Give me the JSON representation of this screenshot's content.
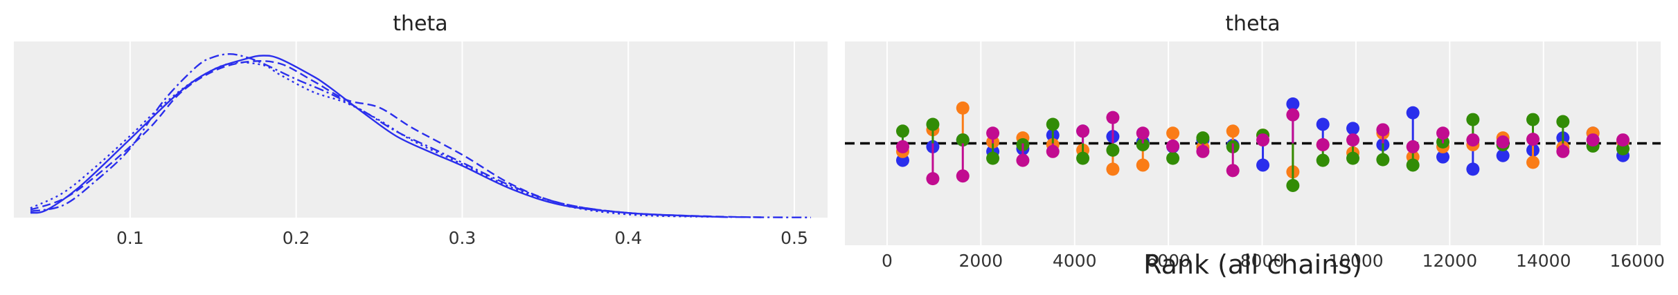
{
  "chart_data": [
    {
      "type": "line",
      "title": "theta",
      "xlabel": "",
      "ylabel": "",
      "xlim": [
        0.03,
        0.52
      ],
      "ylim": [
        0,
        1.12
      ],
      "grid": true,
      "xticks": [
        0.1,
        0.2,
        0.3,
        0.4,
        0.5
      ],
      "xtick_labels": [
        "0.1",
        "0.2",
        "0.3",
        "0.4",
        "0.5"
      ],
      "series": [
        {
          "style": "solid",
          "color": "#2a2eec",
          "x": [
            0.04,
            0.05,
            0.07,
            0.1,
            0.13,
            0.15,
            0.17,
            0.18,
            0.19,
            0.21,
            0.22,
            0.24,
            0.26,
            0.28,
            0.3,
            0.33,
            0.36,
            0.4,
            0.44,
            0.46
          ],
          "y": [
            0.03,
            0.05,
            0.2,
            0.5,
            0.8,
            0.94,
            1.01,
            1.03,
            1.01,
            0.9,
            0.83,
            0.67,
            0.52,
            0.42,
            0.33,
            0.18,
            0.08,
            0.03,
            0.01,
            0.003
          ]
        },
        {
          "style": "dashed",
          "color": "#2a2eec",
          "x": [
            0.04,
            0.06,
            0.08,
            0.11,
            0.13,
            0.15,
            0.17,
            0.19,
            0.21,
            0.23,
            0.25,
            0.27,
            0.3,
            0.33,
            0.36,
            0.4,
            0.45,
            0.48
          ],
          "y": [
            0.05,
            0.12,
            0.27,
            0.55,
            0.79,
            0.93,
            0.99,
            0.98,
            0.87,
            0.75,
            0.7,
            0.57,
            0.4,
            0.21,
            0.09,
            0.03,
            0.008,
            0.002
          ]
        },
        {
          "style": "dotted",
          "color": "#2a2eec",
          "x": [
            0.04,
            0.06,
            0.08,
            0.1,
            0.12,
            0.14,
            0.16,
            0.18,
            0.19,
            0.21,
            0.23,
            0.25,
            0.27,
            0.3,
            0.33,
            0.36,
            0.4,
            0.45
          ],
          "y": [
            0.06,
            0.16,
            0.33,
            0.52,
            0.72,
            0.88,
            0.98,
            0.97,
            0.91,
            0.8,
            0.73,
            0.62,
            0.49,
            0.34,
            0.19,
            0.08,
            0.02,
            0.005
          ]
        },
        {
          "style": "dashdot",
          "color": "#2a2eec",
          "x": [
            0.04,
            0.06,
            0.08,
            0.1,
            0.12,
            0.14,
            0.15,
            0.16,
            0.17,
            0.18,
            0.2,
            0.22,
            0.24,
            0.26,
            0.28,
            0.3,
            0.33,
            0.36,
            0.4,
            0.45,
            0.51
          ],
          "y": [
            0.04,
            0.08,
            0.24,
            0.44,
            0.74,
            0.96,
            1.02,
            1.04,
            1.02,
            0.98,
            0.88,
            0.79,
            0.68,
            0.55,
            0.45,
            0.35,
            0.2,
            0.09,
            0.03,
            0.006,
            0.001
          ]
        }
      ]
    },
    {
      "type": "scatter",
      "title": "theta",
      "xlabel": "Rank (all chains)",
      "ylabel": "",
      "xlim": [
        -900,
        16500
      ],
      "ylim": [
        -1.5,
        1.5
      ],
      "grid": true,
      "reference_line": {
        "y": 0,
        "style": "dashed",
        "color": "#000000"
      },
      "xticks": [
        0,
        2000,
        4000,
        6000,
        8000,
        10000,
        12000,
        14000,
        16000
      ],
      "xtick_labels": [
        "0",
        "2000",
        "4000",
        "6000",
        "8000",
        "10000",
        "12000",
        "14000",
        "16000"
      ],
      "x": [
        333,
        975,
        1615,
        2255,
        2895,
        3535,
        4175,
        4815,
        5455,
        6095,
        6735,
        7375,
        8015,
        8655,
        9295,
        9935,
        10575,
        11215,
        11855,
        12495,
        13135,
        13775,
        14415,
        15055,
        15695
      ],
      "series": [
        {
          "name": "",
          "color": "#2a2eec",
          "values": [
            -0.25,
            -0.05,
            0.05,
            -0.12,
            -0.08,
            0.12,
            0.18,
            0.1,
            0.02,
            -0.05,
            0.05,
            -0.03,
            -0.32,
            0.58,
            0.28,
            0.22,
            -0.02,
            0.45,
            -0.2,
            -0.38,
            -0.18,
            -0.1,
            0.08,
            0.15,
            -0.18
          ]
        },
        {
          "name": "",
          "color": "#fa7c17",
          "values": [
            -0.12,
            0.2,
            0.52,
            0.02,
            0.08,
            -0.02,
            -0.1,
            -0.38,
            -0.32,
            0.15,
            -0.06,
            0.18,
            0.12,
            -0.42,
            -0.02,
            -0.14,
            0.15,
            -0.2,
            -0.05,
            -0.02,
            0.08,
            -0.28,
            -0.06,
            0.15,
            0.02
          ]
        },
        {
          "name": "",
          "color": "#328c06",
          "values": [
            0.18,
            0.28,
            0.05,
            -0.22,
            -0.02,
            0.28,
            -0.22,
            -0.1,
            -0.02,
            -0.22,
            0.08,
            -0.05,
            0.12,
            -0.62,
            -0.25,
            -0.22,
            -0.24,
            -0.32,
            0.02,
            0.35,
            -0.02,
            0.35,
            0.32,
            -0.04,
            -0.08
          ]
        },
        {
          "name": "",
          "color": "#c10c90",
          "values": [
            -0.05,
            -0.52,
            -0.48,
            0.15,
            -0.25,
            -0.12,
            0.18,
            0.38,
            0.15,
            -0.04,
            -0.12,
            -0.4,
            0.05,
            0.42,
            -0.02,
            0.05,
            0.2,
            -0.05,
            0.15,
            0.05,
            0.02,
            0.06,
            -0.12,
            0.05,
            0.05
          ]
        }
      ]
    }
  ]
}
